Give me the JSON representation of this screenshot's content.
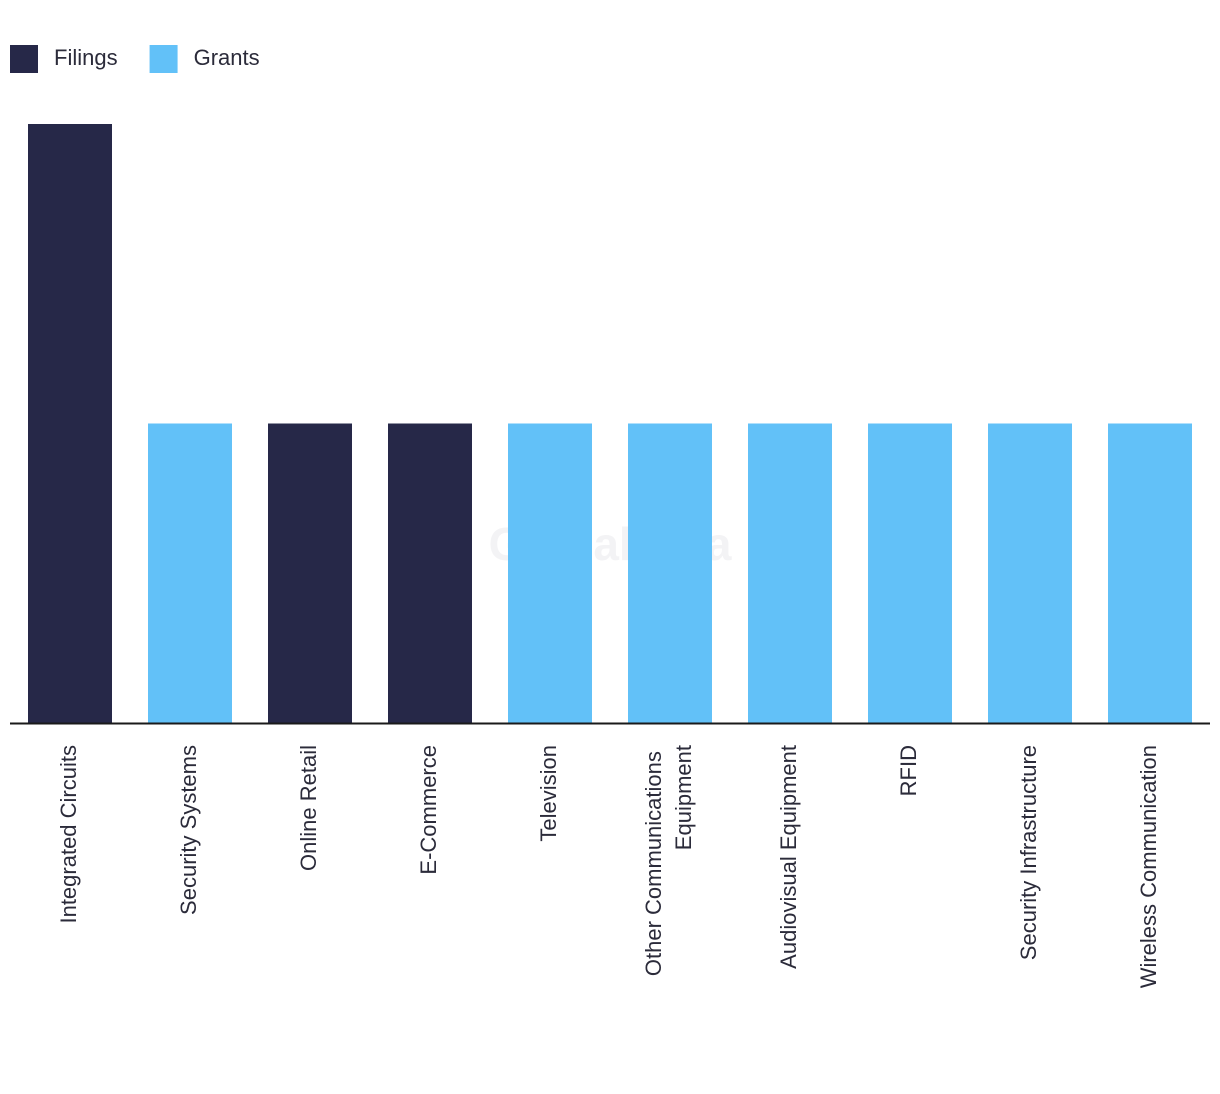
{
  "chart_data": {
    "type": "bar",
    "stacked": true,
    "categories": [
      "Integrated Circuits",
      "Security Systems",
      "Online Retail",
      "E-Commerce",
      "Television",
      "Other Communications Equipment",
      "Audiovisual Equipment",
      "RFID",
      "Security Infrastructure",
      "Wireless Communication"
    ],
    "series": [
      {
        "name": "Filings",
        "color": "#262848",
        "values": [
          2,
          0,
          1,
          1,
          0,
          0,
          0,
          0,
          0,
          0
        ]
      },
      {
        "name": "Grants",
        "color": "#62c1f8",
        "values": [
          0,
          1,
          0,
          0,
          1,
          1,
          1,
          1,
          1,
          1
        ]
      }
    ],
    "watermark": "GlobalData",
    "legend": "top-left"
  }
}
